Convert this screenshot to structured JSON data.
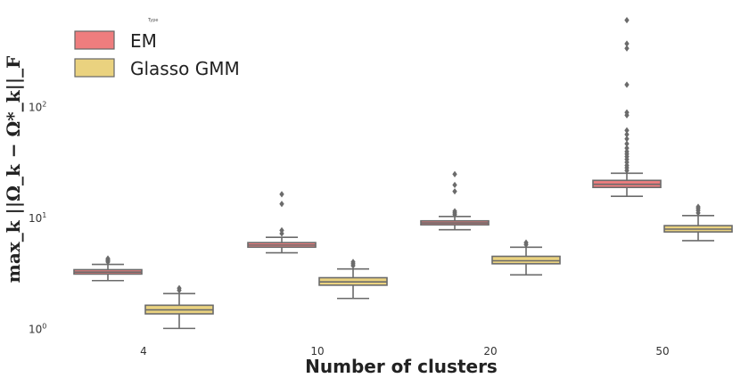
{
  "chart_data": {
    "type": "boxplot",
    "xlabel": "Number of clusters",
    "ylabel": "max_k ||Ω_k − Ω*_k||_F",
    "yscale": "log",
    "ylim": [
      0.75,
      800
    ],
    "yticks": [
      {
        "value": 1,
        "base": "10",
        "exp": "0"
      },
      {
        "value": 10,
        "base": "10",
        "exp": "1"
      },
      {
        "value": 100,
        "base": "10",
        "exp": "2"
      }
    ],
    "categories": [
      "4",
      "10",
      "20",
      "50"
    ],
    "legend": {
      "title": "Type",
      "placement": "top-left",
      "entries": [
        "EM",
        "Glasso GMM"
      ]
    },
    "series": [
      {
        "name": "EM",
        "color": "#ee7d7e",
        "boxes": [
          {
            "whisker_low": 2.75,
            "q1": 3.15,
            "median": 3.28,
            "q3": 3.45,
            "whisker_high": 3.85,
            "outliers": [
              4.05,
              4.15,
              4.25,
              4.35
            ]
          },
          {
            "whisker_low": 4.9,
            "q1": 5.5,
            "median": 5.75,
            "q3": 6.05,
            "whisker_high": 6.75,
            "outliers": [
              7.3,
              7.8,
              13.5,
              16.5
            ]
          },
          {
            "whisker_low": 7.9,
            "q1": 8.75,
            "median": 9.1,
            "q3": 9.5,
            "whisker_high": 10.4,
            "outliers": [
              10.8,
              11.2,
              11.6,
              17.5,
              20,
              25
            ]
          },
          {
            "whisker_low": 15.8,
            "q1": 19,
            "median": 20.3,
            "q3": 22,
            "whisker_high": 25.5,
            "outliers": [
              27,
              28.5,
              30,
              32,
              34,
              36,
              38,
              40,
              43,
              47,
              52,
              57,
              62,
              85,
              90,
              160,
              340,
              375,
              610
            ]
          }
        ]
      },
      {
        "name": "Glasso GMM",
        "color": "#ead27f",
        "boxes": [
          {
            "whisker_low": 1.02,
            "q1": 1.38,
            "median": 1.5,
            "q3": 1.65,
            "whisker_high": 2.1,
            "outliers": [
              2.25,
              2.35
            ]
          },
          {
            "whisker_low": 1.9,
            "q1": 2.5,
            "median": 2.68,
            "q3": 2.92,
            "whisker_high": 3.5,
            "outliers": [
              3.75,
              3.9,
              4.05
            ]
          },
          {
            "whisker_low": 3.1,
            "q1": 3.9,
            "median": 4.15,
            "q3": 4.55,
            "whisker_high": 5.5,
            "outliers": [
              5.8,
              6.05
            ]
          },
          {
            "whisker_low": 6.3,
            "q1": 7.55,
            "median": 8,
            "q3": 8.6,
            "whisker_high": 10.6,
            "outliers": [
              11.2,
              11.8,
              12.3,
              12.7
            ]
          }
        ]
      }
    ]
  }
}
